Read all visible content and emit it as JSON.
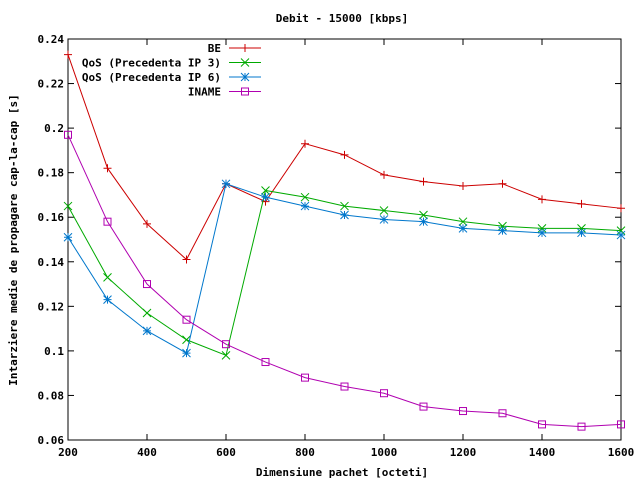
{
  "chart_data": {
    "type": "line",
    "title": "Debit - 15000 [kbps]",
    "xlabel": "Dimensiune pachet [octeti]",
    "ylabel": "Intarziere medie de propagare cap-la-cap [s]",
    "xlim": [
      200,
      1600
    ],
    "ylim": [
      0.06,
      0.24
    ],
    "xticks": [
      "200",
      "400",
      "600",
      "800",
      "1000",
      "1200",
      "1400",
      "1600"
    ],
    "yticks": [
      "0.06",
      "0.08",
      "0.1",
      "0.12",
      "0.14",
      "0.16",
      "0.18",
      "0.2",
      "0.22",
      "0.24"
    ],
    "grid": false,
    "legend_position": "top-right",
    "series": [
      {
        "name": "BE",
        "color": "#cc0000",
        "marker": "plus",
        "x": [
          200,
          300,
          400,
          500,
          600,
          700,
          800,
          900,
          1000,
          1100,
          1200,
          1300,
          1400,
          1500,
          1600
        ],
        "y": [
          0.233,
          0.182,
          0.157,
          0.141,
          0.175,
          0.167,
          0.193,
          0.188,
          0.179,
          0.176,
          0.174,
          0.175,
          0.168,
          0.166,
          0.164
        ]
      },
      {
        "name": "QoS (Precedenta IP 3)",
        "color": "#00aa00",
        "marker": "x",
        "x": [
          200,
          300,
          400,
          500,
          600,
          700,
          800,
          900,
          1000,
          1100,
          1200,
          1300,
          1400,
          1500,
          1600
        ],
        "y": [
          0.165,
          0.133,
          0.117,
          0.105,
          0.098,
          0.172,
          0.169,
          0.165,
          0.163,
          0.161,
          0.158,
          0.156,
          0.155,
          0.155,
          0.154
        ]
      },
      {
        "name": "QoS (Precedenta IP 6)",
        "color": "#0077cc",
        "marker": "star",
        "x": [
          200,
          300,
          400,
          500,
          600,
          700,
          800,
          900,
          1000,
          1100,
          1200,
          1300,
          1400,
          1500,
          1600
        ],
        "y": [
          0.151,
          0.123,
          0.109,
          0.099,
          0.175,
          0.169,
          0.165,
          0.161,
          0.159,
          0.158,
          0.155,
          0.154,
          0.153,
          0.153,
          0.152
        ]
      },
      {
        "name": "INAME",
        "color": "#b000b0",
        "marker": "square",
        "x": [
          200,
          300,
          400,
          500,
          600,
          700,
          800,
          900,
          1000,
          1100,
          1200,
          1300,
          1400,
          1500,
          1600
        ],
        "y": [
          0.197,
          0.158,
          0.13,
          0.114,
          0.103,
          0.095,
          0.088,
          0.084,
          0.081,
          0.075,
          0.073,
          0.072,
          0.067,
          0.066,
          0.067
        ]
      }
    ]
  }
}
